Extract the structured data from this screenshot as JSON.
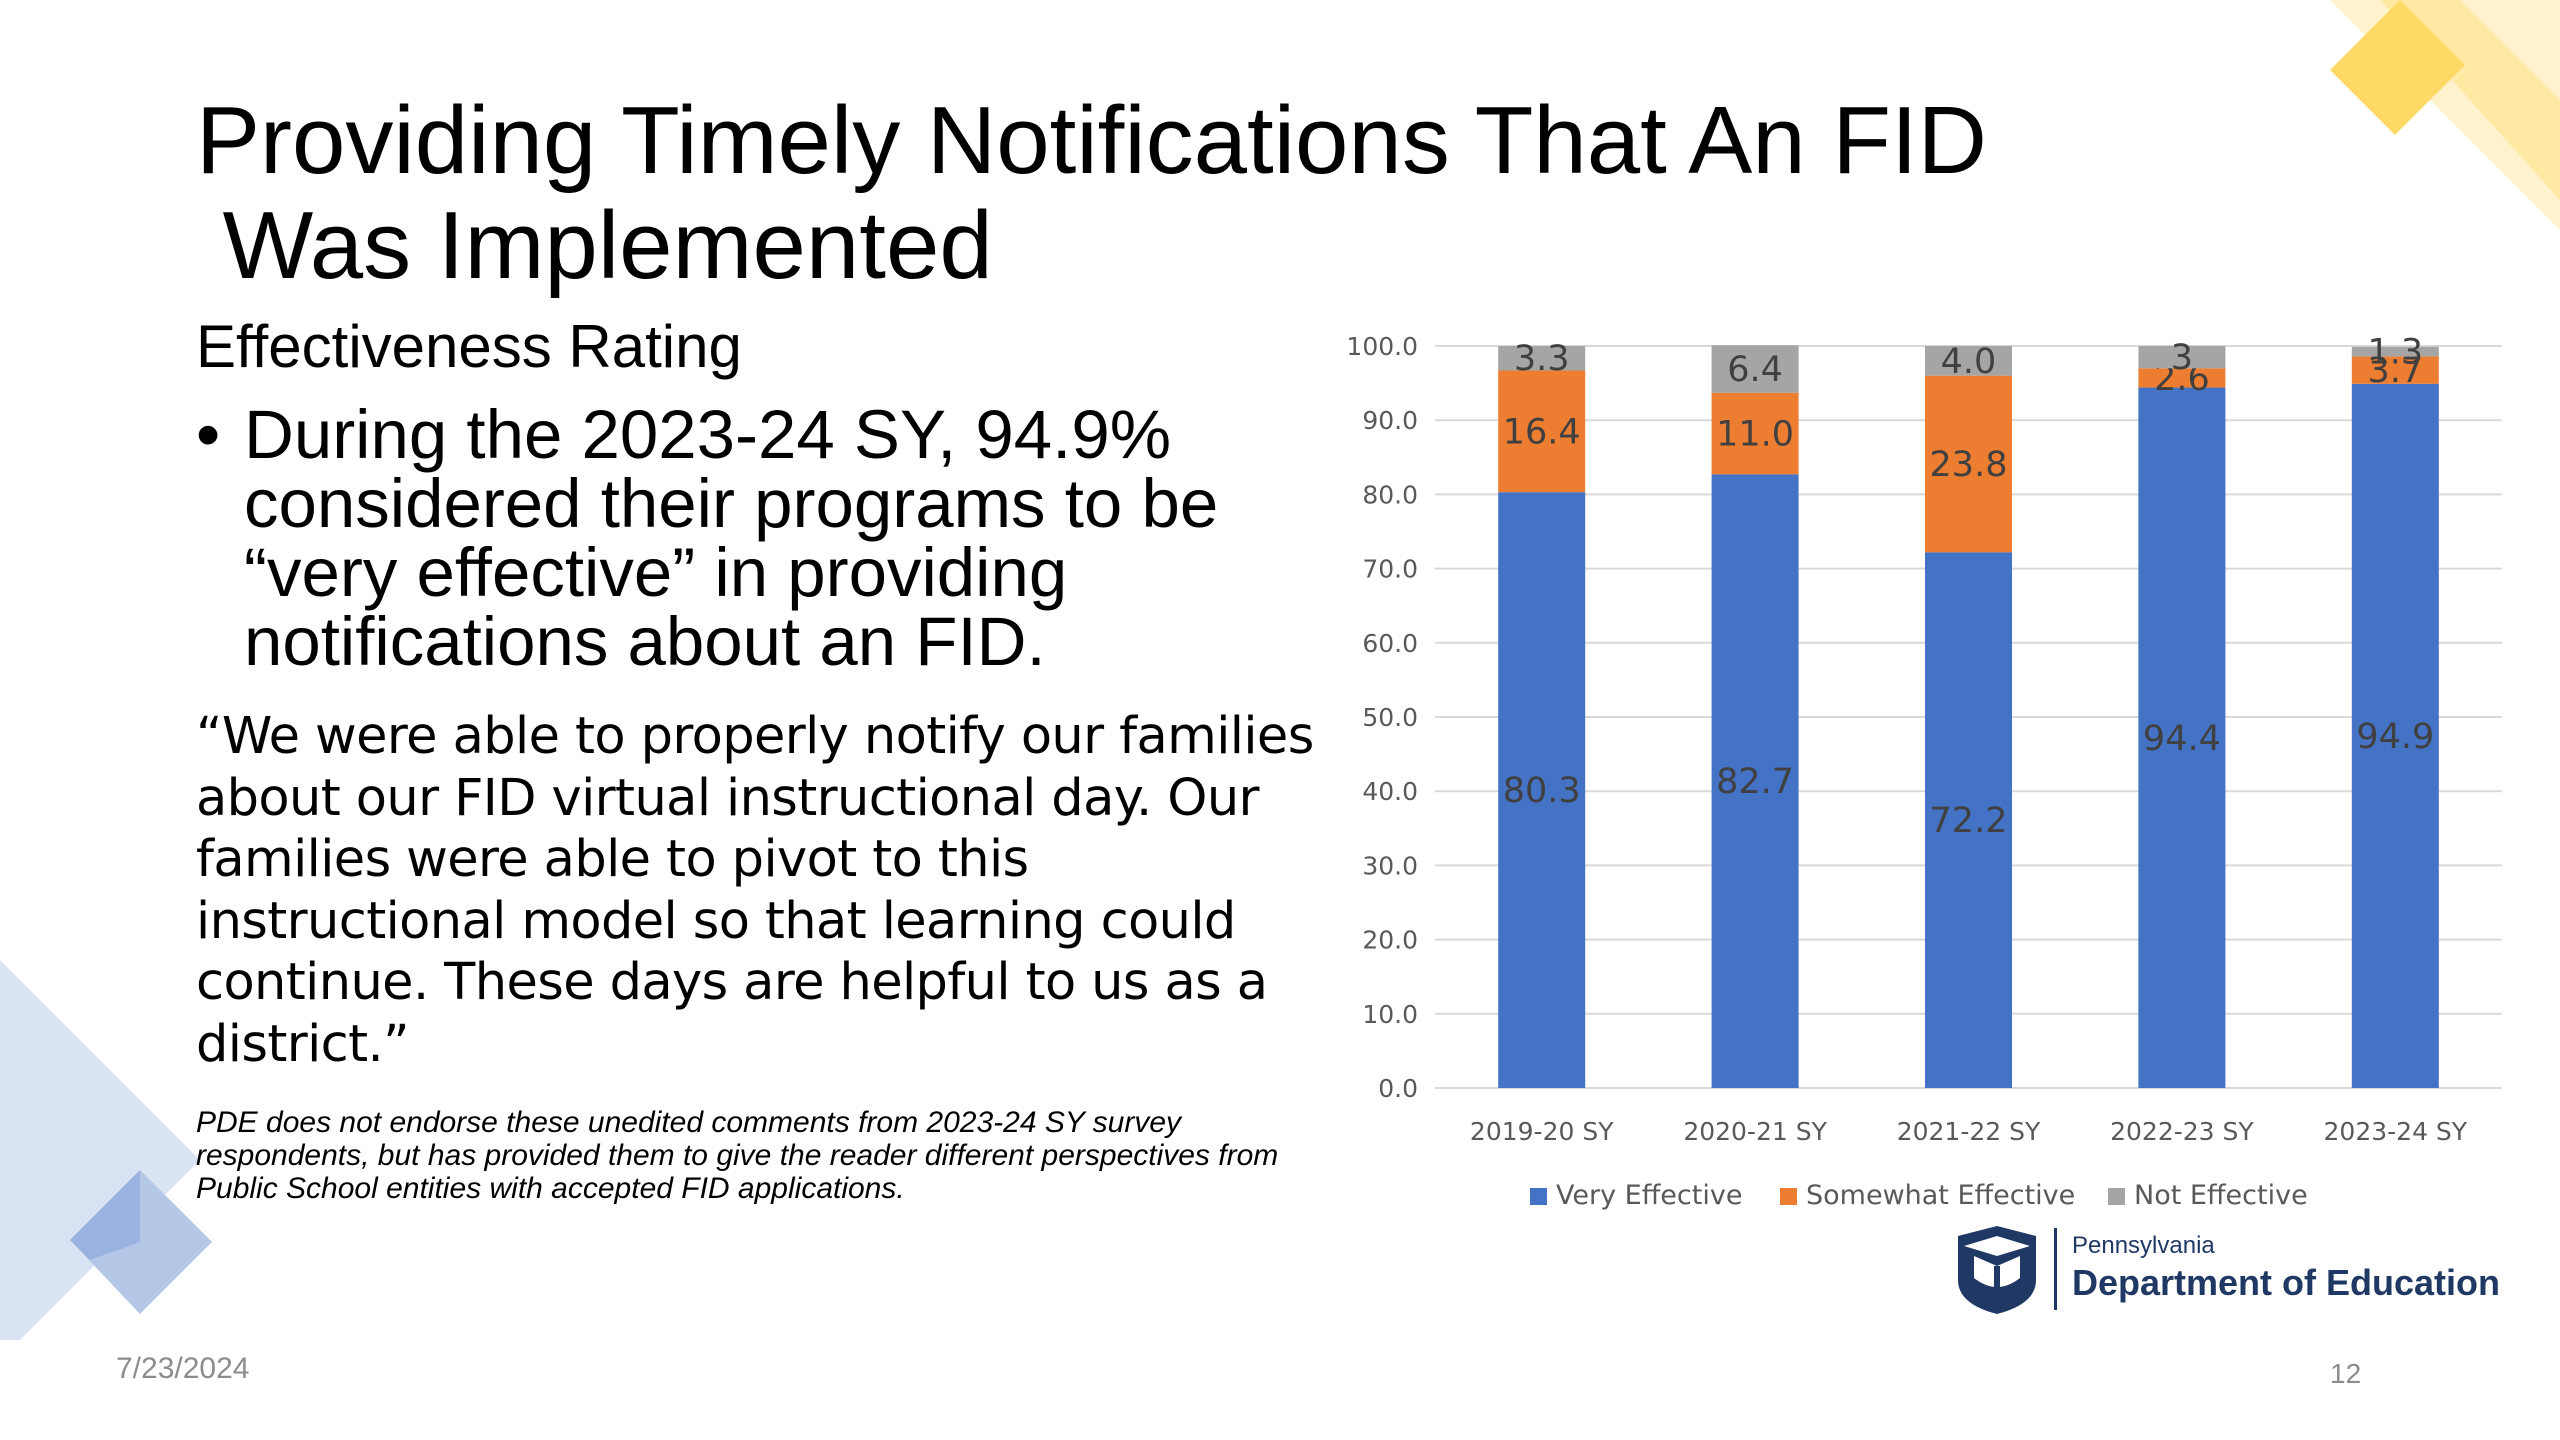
{
  "slide": {
    "title": "Providing Timely Notifications That An FID\n Was Implemented",
    "subtitle": "Effectiveness Rating",
    "bullet": "During the 2023-24 SY, 94.9% considered their programs to be “very effective” in providing notifications about an FID.",
    "bullet_marker": "•",
    "quote": "“We were able to properly notify our families about our FID virtual instructional day. Our families were able to pivot to this instructional model so that learning could continue. These days are helpful to us as a district.”",
    "disclaimer": "PDE does not endorse these unedited comments from 2023-24 SY survey respondents, but has provided them to give the reader different perspectives from Public School entities with accepted FID applications.",
    "date": "7/23/2024",
    "page_number": "12"
  },
  "logo": {
    "state": "Pennsylvania",
    "department": "Department of Education"
  },
  "colors": {
    "very_effective": "#4472c4",
    "somewhat_effective": "#ed7d31",
    "not_effective": "#a5a5a5",
    "logo_navy": "#1f3864",
    "deco_gold": "#ffd966",
    "deco_blue": "#b4c7e7"
  },
  "chart_data": {
    "type": "bar",
    "stacked": true,
    "categories": [
      "2019-20 SY",
      "2020-21 SY",
      "2021-22 SY",
      "2022-23 SY",
      "2023-24 SY"
    ],
    "series": [
      {
        "name": "Very Effective",
        "values": [
          80.3,
          82.7,
          72.2,
          94.4,
          94.9
        ],
        "labels": [
          "80.3",
          "82.7",
          "72.2",
          "94.4",
          "94.9"
        ]
      },
      {
        "name": "Somewhat Effective",
        "values": [
          16.4,
          11.0,
          23.8,
          2.6,
          3.7
        ],
        "labels": [
          "16.4",
          "11.0",
          "23.8",
          "2.6",
          "3.7"
        ]
      },
      {
        "name": "Not Effective",
        "values": [
          3.3,
          6.4,
          4.0,
          3,
          1.3
        ],
        "labels": [
          "3.3",
          "6.4",
          "4.0",
          "3",
          "1.3"
        ]
      }
    ],
    "ylim": [
      0,
      100
    ],
    "yticks": [
      "0.0",
      "10.0",
      "20.0",
      "30.0",
      "40.0",
      "50.0",
      "60.0",
      "70.0",
      "80.0",
      "90.0",
      "100.0"
    ],
    "grid": true,
    "legend_position": "bottom"
  }
}
